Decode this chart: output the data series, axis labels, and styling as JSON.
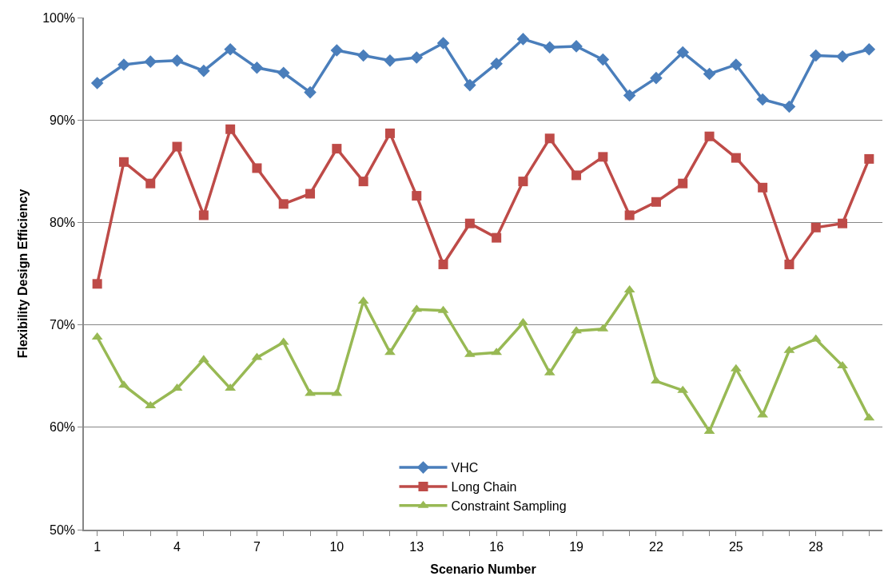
{
  "chart_data": {
    "type": "line",
    "xlabel": "Scenario Number",
    "ylabel": "Flexibility Design Efficiency",
    "x": [
      1,
      2,
      3,
      4,
      5,
      6,
      7,
      8,
      9,
      10,
      11,
      12,
      13,
      14,
      15,
      16,
      17,
      18,
      19,
      20,
      21,
      22,
      23,
      24,
      25,
      26,
      27,
      28,
      29,
      30
    ],
    "series": [
      {
        "name": "VHC",
        "color": "#4a7ebb",
        "marker": "diamond",
        "values": [
          93.6,
          95.4,
          95.7,
          95.8,
          94.8,
          96.9,
          95.1,
          94.6,
          92.7,
          96.8,
          96.3,
          95.8,
          96.1,
          97.5,
          93.4,
          95.5,
          97.9,
          97.1,
          97.2,
          95.9,
          92.4,
          94.1,
          96.6,
          94.5,
          95.4,
          92.0,
          91.3,
          96.3,
          96.2,
          96.9
        ]
      },
      {
        "name": "Long Chain",
        "color": "#be4b48",
        "marker": "square",
        "values": [
          74.0,
          85.9,
          83.8,
          87.4,
          80.7,
          89.1,
          85.3,
          81.8,
          82.8,
          87.2,
          84.0,
          88.7,
          82.6,
          75.9,
          79.9,
          78.5,
          84.0,
          88.2,
          84.6,
          86.4,
          80.7,
          82.0,
          83.8,
          88.4,
          86.3,
          83.4,
          75.9,
          79.5,
          79.9,
          86.2
        ]
      },
      {
        "name": "Constraint Sampling",
        "color": "#98b954",
        "marker": "triangle",
        "values": [
          68.8,
          64.1,
          62.1,
          63.8,
          66.6,
          63.8,
          66.8,
          68.3,
          63.3,
          63.3,
          72.3,
          67.3,
          71.5,
          71.4,
          67.1,
          67.3,
          70.2,
          65.3,
          69.4,
          69.6,
          73.4,
          64.5,
          63.6,
          59.6,
          65.7,
          61.2,
          67.5,
          68.6,
          66.0,
          60.9
        ]
      }
    ],
    "xlim": [
      0.5,
      30.5
    ],
    "xticks": [
      1,
      {
        "value": 2,
        "label": null
      },
      {
        "value": 3,
        "label": null
      },
      4,
      {
        "value": 5,
        "label": null
      },
      {
        "value": 6,
        "label": null
      },
      7,
      {
        "value": 8,
        "label": null
      },
      {
        "value": 9,
        "label": null
      },
      10,
      {
        "value": 11,
        "label": null
      },
      {
        "value": 12,
        "label": null
      },
      13,
      {
        "value": 14,
        "label": null
      },
      {
        "value": 15,
        "label": null
      },
      16,
      {
        "value": 17,
        "label": null
      },
      {
        "value": 18,
        "label": null
      },
      19,
      {
        "value": 20,
        "label": null
      },
      {
        "value": 21,
        "label": null
      },
      22,
      {
        "value": 23,
        "label": null
      },
      {
        "value": 24,
        "label": null
      },
      25,
      {
        "value": 26,
        "label": null
      },
      {
        "value": 27,
        "label": null
      },
      28,
      {
        "value": 29,
        "label": null
      },
      {
        "value": 30,
        "label": null
      }
    ],
    "ylim": [
      50,
      100
    ],
    "yticks": [
      {
        "value": 50,
        "label": "50%"
      },
      {
        "value": 60,
        "label": "60%"
      },
      {
        "value": 70,
        "label": "70%"
      },
      {
        "value": 80,
        "label": "80%"
      },
      {
        "value": 90,
        "label": "90%"
      },
      {
        "value": 100,
        "label": "100%"
      }
    ],
    "grid": "y",
    "legend": "bottom",
    "line_style": "solid"
  }
}
